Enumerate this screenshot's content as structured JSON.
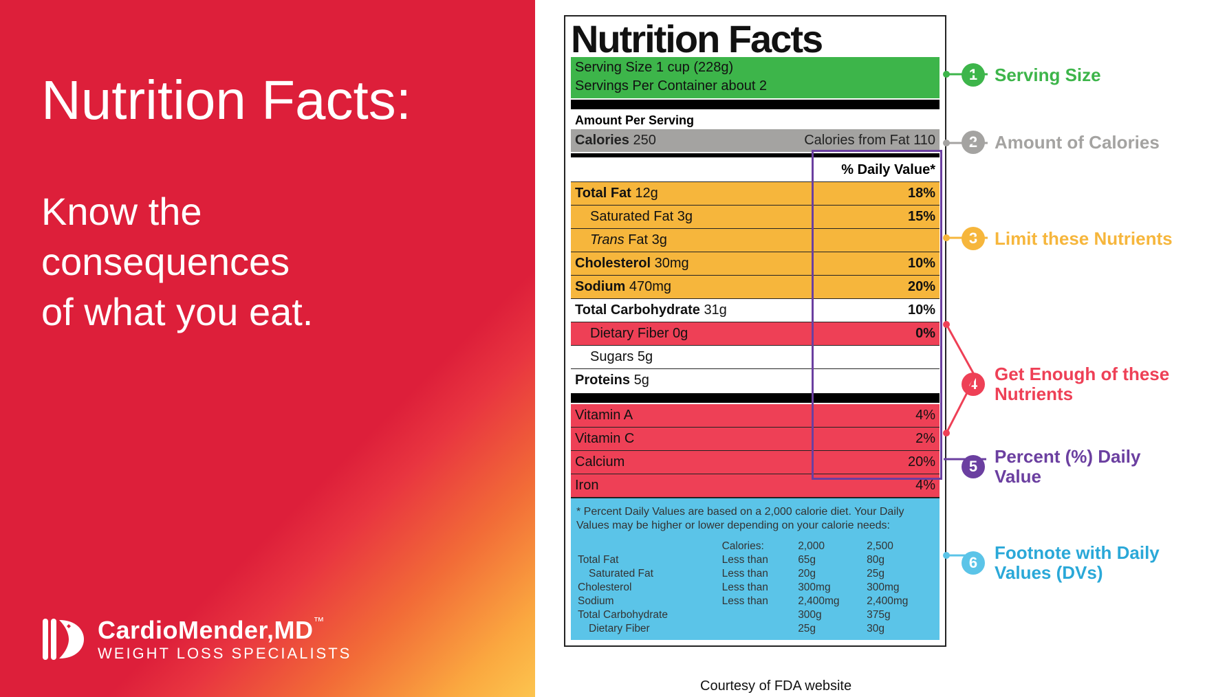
{
  "colors": {
    "green": "#3db54a",
    "gray": "#a4a3a1",
    "yellow": "#f6b63c",
    "pink": "#ee4056",
    "blue": "#5bc4e8",
    "purple": "#6b3fa0",
    "brandRed": "#dd1f3a"
  },
  "left": {
    "title": "Nutrition Facts:",
    "line1": "Know the",
    "line2": "consequences",
    "line3": "of what you eat."
  },
  "brand": {
    "name": "CardioMender,MD",
    "tm": "™",
    "sub": "WEIGHT LOSS SPECIALISTS"
  },
  "label": {
    "title": "Nutrition Facts",
    "servingSize": "Serving Size 1 cup (228g)",
    "servingsPer": "Servings Per Container about 2",
    "amountPer": "Amount Per Serving",
    "caloriesLabel": "Calories",
    "caloriesValue": "250",
    "caloriesFromFat": "Calories from Fat 110",
    "dvHeader": "% Daily Value*",
    "rows": {
      "totalFat": {
        "label": "Total Fat",
        "amt": "12g",
        "dv": "18%"
      },
      "satFat": {
        "label": "Saturated Fat 3g",
        "dv": "15%"
      },
      "transFat": {
        "label": "Trans Fat 3g",
        "dv": ""
      },
      "cholesterol": {
        "label": "Cholesterol",
        "amt": "30mg",
        "dv": "10%"
      },
      "sodium": {
        "label": "Sodium",
        "amt": "470mg",
        "dv": "20%"
      },
      "totalCarb": {
        "label": "Total Carbohydrate",
        "amt": "31g",
        "dv": "10%"
      },
      "fiber": {
        "label": "Dietary Fiber 0g",
        "dv": "0%"
      },
      "sugars": {
        "label": "Sugars 5g",
        "dv": ""
      },
      "protein": {
        "label": "Proteins",
        "amt": "5g",
        "dv": ""
      },
      "vitA": {
        "label": "Vitamin A",
        "dv": "4%"
      },
      "vitC": {
        "label": "Vitamin C",
        "dv": "2%"
      },
      "calcium": {
        "label": "Calcium",
        "dv": "20%"
      },
      "iron": {
        "label": "Iron",
        "dv": "4%"
      }
    },
    "footnote": "* Percent Daily Values are based on a 2,000 calorie diet. Your Daily Values may be higher or lower depending on your calorie needs:",
    "footHeader": {
      "c1": "Calories:",
      "c2": "2,000",
      "c3": "2,500"
    },
    "foot": [
      {
        "n": "Total Fat",
        "q": "Less than",
        "a": "65g",
        "b": "80g"
      },
      {
        "n": "Saturated Fat",
        "q": "Less than",
        "a": "20g",
        "b": "25g",
        "sub": true
      },
      {
        "n": "Cholesterol",
        "q": "Less than",
        "a": "300mg",
        "b": "300mg"
      },
      {
        "n": "Sodium",
        "q": "Less than",
        "a": "2,400mg",
        "b": "2,400mg"
      },
      {
        "n": "Total Carbohydrate",
        "q": "",
        "a": "300g",
        "b": "375g"
      },
      {
        "n": "Dietary Fiber",
        "q": "",
        "a": "25g",
        "b": "30g",
        "sub": true
      }
    ]
  },
  "callouts": {
    "c1": {
      "n": "1",
      "text": "Serving Size",
      "color": "#3db54a"
    },
    "c2": {
      "n": "2",
      "text": "Amount of Calories",
      "color": "#a4a3a1"
    },
    "c3": {
      "n": "3",
      "text": "Limit these Nutrients",
      "color": "#f6b63c"
    },
    "c4": {
      "n": "4",
      "text": "Get Enough of these Nutrients",
      "color": "#ee4056"
    },
    "c5": {
      "n": "5",
      "text": "Percent (%) Daily Value",
      "color": "#6b3fa0"
    },
    "c6": {
      "n": "6",
      "text": "Footnote with Daily Values (DVs)",
      "color": "#5bc4e8"
    }
  },
  "credit": "Courtesy of FDA website"
}
